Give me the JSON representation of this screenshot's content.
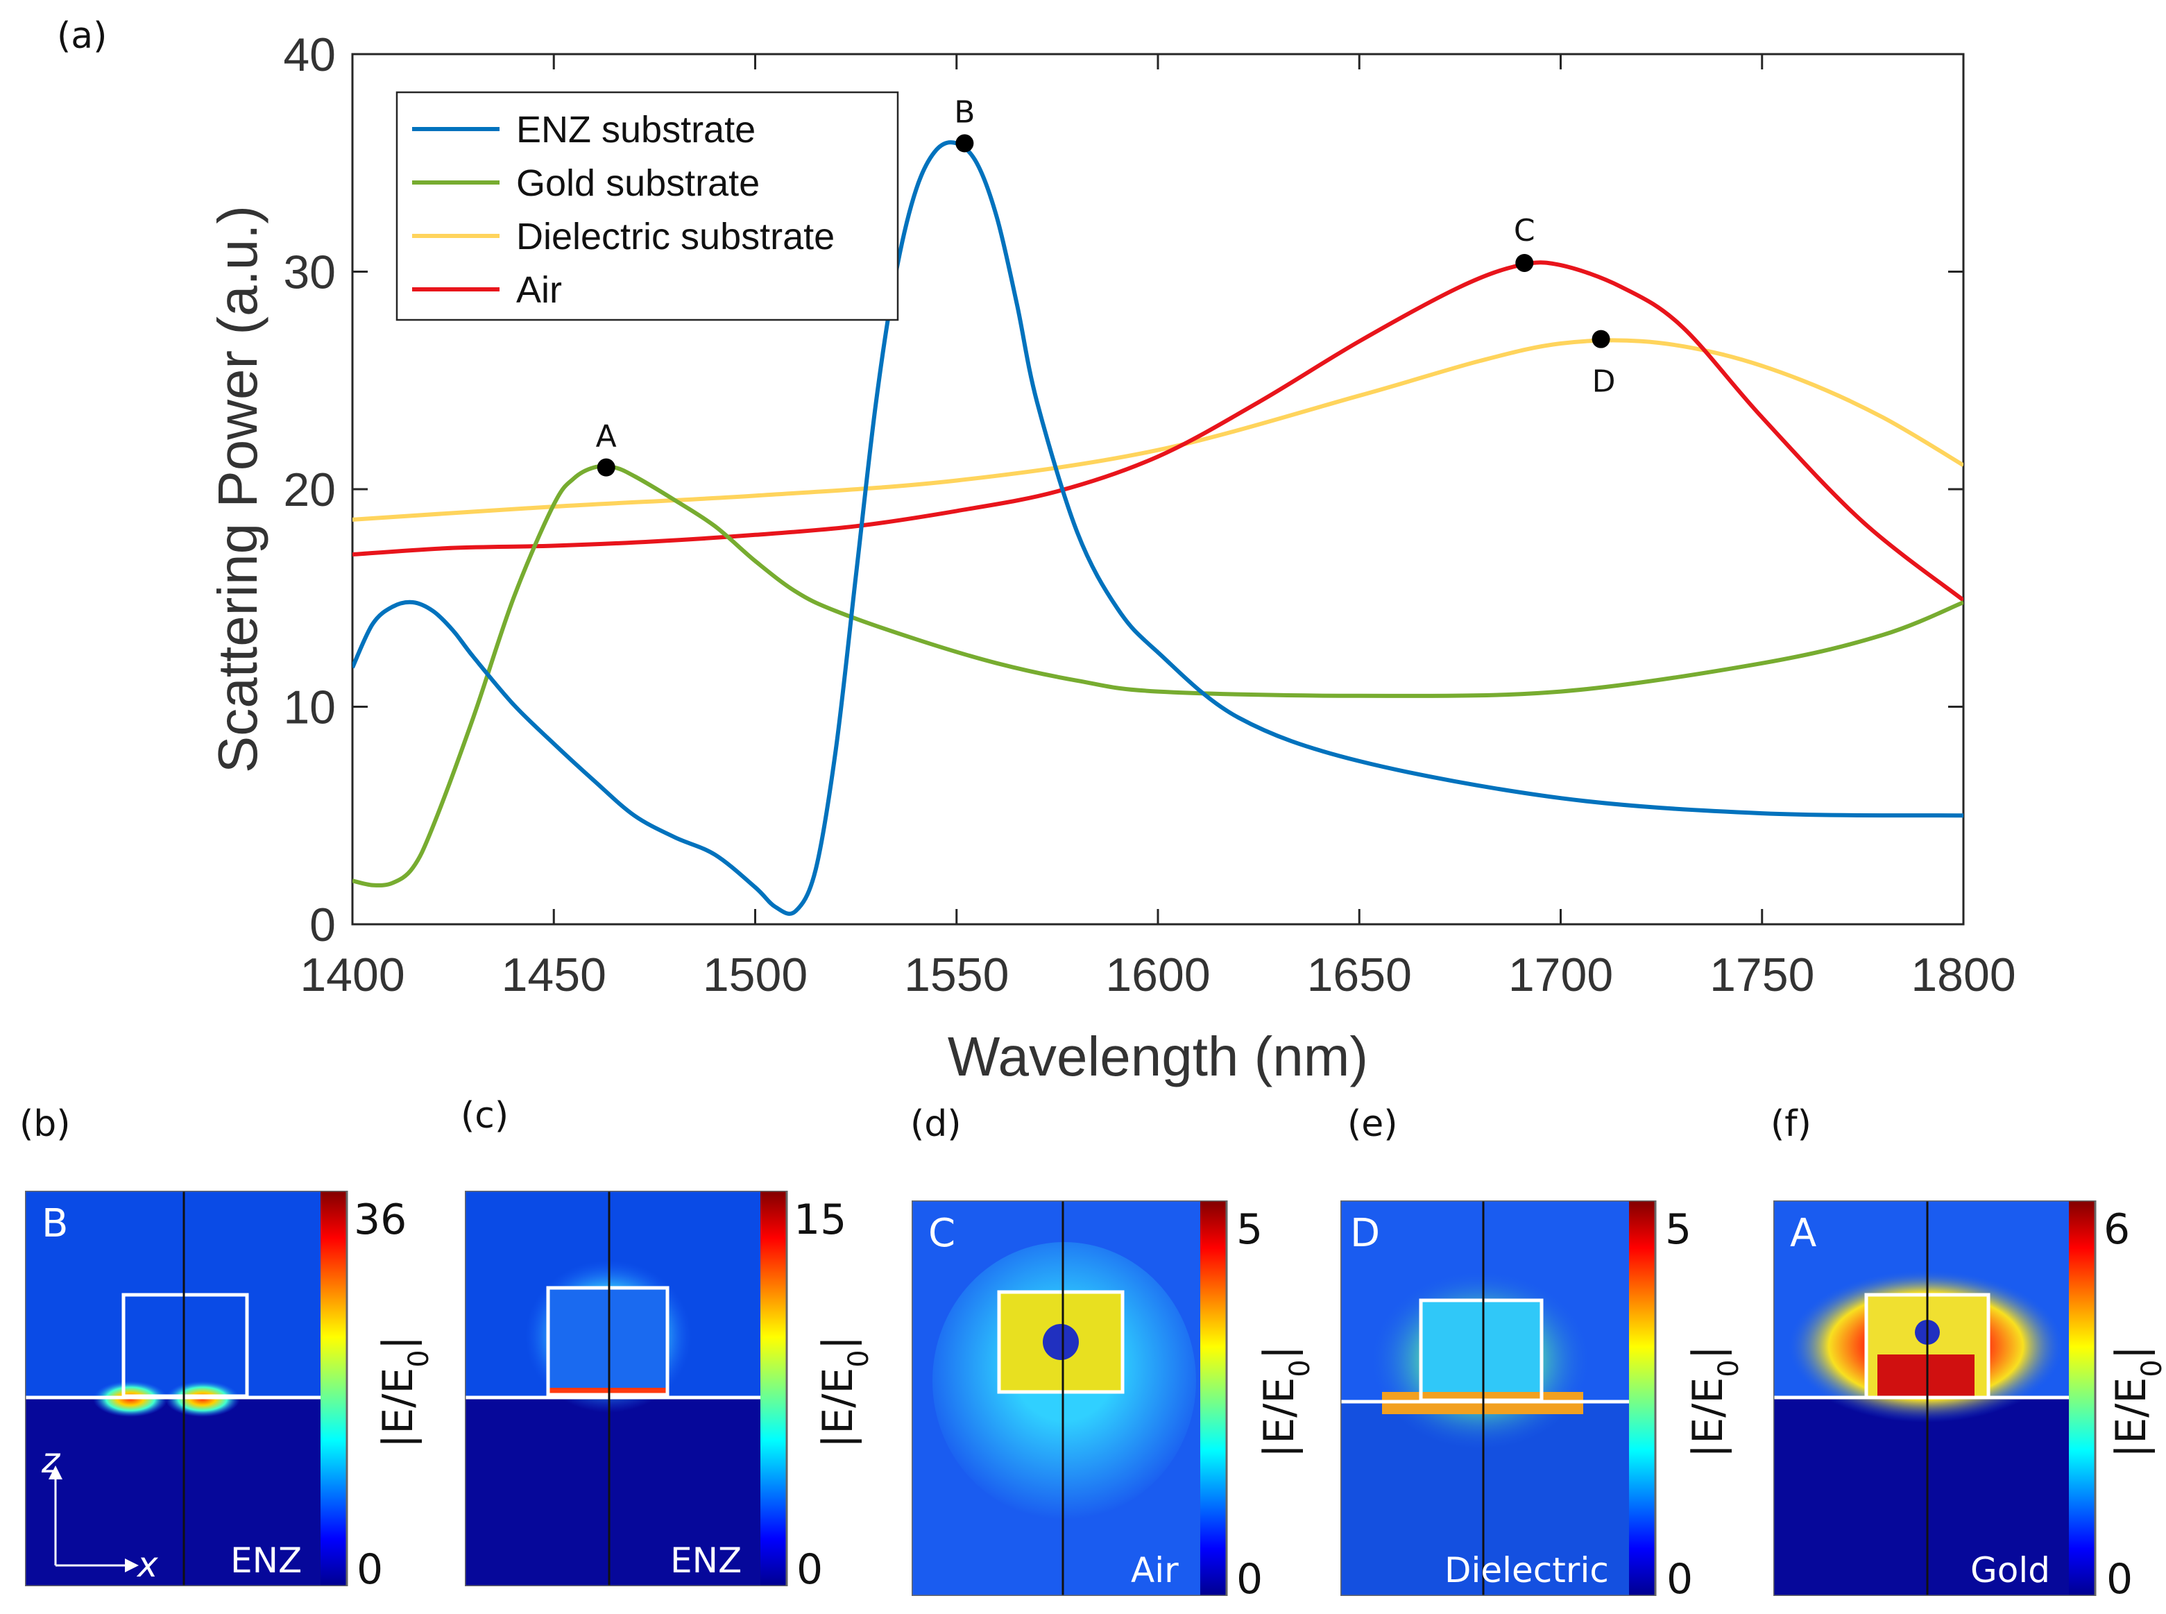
{
  "chart_data": {
    "type": "line",
    "panel_label": "(a)",
    "xlabel": "Wavelength (nm)",
    "ylabel": "Scattering Power (a.u.)",
    "xlim": [
      1400,
      1800
    ],
    "ylim": [
      0,
      40
    ],
    "xticks": [
      1400,
      1450,
      1500,
      1550,
      1600,
      1650,
      1700,
      1750,
      1800
    ],
    "yticks": [
      0,
      10,
      20,
      30,
      40
    ],
    "legend_position": "top-left",
    "series": [
      {
        "name": "ENZ substrate",
        "color": "#0072BD",
        "x": [
          1400,
          1405,
          1410,
          1415,
          1420,
          1425,
          1430,
          1440,
          1450,
          1460,
          1470,
          1480,
          1490,
          1500,
          1505,
          1510,
          1515,
          1520,
          1525,
          1530,
          1535,
          1540,
          1545,
          1550,
          1555,
          1560,
          1565,
          1570,
          1580,
          1590,
          1600,
          1620,
          1650,
          1700,
          1750,
          1800
        ],
        "y": [
          11.8,
          13.8,
          14.6,
          14.8,
          14.4,
          13.5,
          12.3,
          10.1,
          8.3,
          6.6,
          5.0,
          4.0,
          3.2,
          1.7,
          0.8,
          0.6,
          2.5,
          8.0,
          16.0,
          24.0,
          30.0,
          33.8,
          35.6,
          35.9,
          35.0,
          32.5,
          28.5,
          24.0,
          18.0,
          14.5,
          12.5,
          9.5,
          7.5,
          5.8,
          5.1,
          5.0
        ]
      },
      {
        "name": "Gold substrate",
        "color": "#77AC30",
        "x": [
          1400,
          1405,
          1410,
          1415,
          1420,
          1430,
          1440,
          1450,
          1455,
          1460,
          1465,
          1470,
          1480,
          1490,
          1500,
          1510,
          1520,
          1540,
          1560,
          1580,
          1600,
          1650,
          1700,
          1750,
          1780,
          1800
        ],
        "y": [
          2.0,
          1.8,
          1.9,
          2.6,
          4.5,
          9.5,
          15.0,
          19.3,
          20.5,
          21.0,
          21.0,
          20.6,
          19.5,
          18.3,
          16.7,
          15.3,
          14.4,
          13.1,
          12.0,
          11.2,
          10.7,
          10.5,
          10.7,
          12.0,
          13.3,
          14.8
        ]
      },
      {
        "name": "Dielectric substrate",
        "color": "#FFD45C",
        "x": [
          1400,
          1450,
          1500,
          1550,
          1600,
          1650,
          1680,
          1700,
          1720,
          1740,
          1760,
          1780,
          1800
        ],
        "y": [
          18.6,
          19.2,
          19.7,
          20.4,
          21.8,
          24.3,
          25.9,
          26.7,
          26.8,
          26.2,
          25.0,
          23.3,
          21.1
        ]
      },
      {
        "name": "Air",
        "color": "#E8141B",
        "x": [
          1400,
          1425,
          1450,
          1475,
          1500,
          1525,
          1550,
          1575,
          1600,
          1625,
          1650,
          1675,
          1690,
          1700,
          1715,
          1730,
          1750,
          1775,
          1800
        ],
        "y": [
          17.0,
          17.3,
          17.4,
          17.6,
          17.9,
          18.3,
          19.0,
          19.9,
          21.5,
          24.0,
          26.8,
          29.3,
          30.3,
          30.3,
          29.3,
          27.5,
          23.3,
          18.5,
          14.9
        ]
      }
    ],
    "annotations": [
      {
        "label": "A",
        "x": 1463,
        "y": 21.0
      },
      {
        "label": "B",
        "x": 1552,
        "y": 35.9
      },
      {
        "label": "C",
        "x": 1691,
        "y": 30.4
      },
      {
        "label": "D",
        "x": 1710,
        "y": 26.9
      }
    ]
  },
  "field_maps": [
    {
      "panel_label": "(b)",
      "letter": "B",
      "substrate": "ENZ",
      "colorbar_max": "36",
      "colorbar_min": "0",
      "colorbar_label": "|E/E0|",
      "axis_z": "z",
      "axis_x": "x"
    },
    {
      "panel_label": "(c)",
      "letter": "",
      "substrate": "ENZ",
      "colorbar_max": "15",
      "colorbar_min": "0",
      "colorbar_label": "|E/E0|"
    },
    {
      "panel_label": "(d)",
      "letter": "C",
      "substrate": "Air",
      "colorbar_max": "5",
      "colorbar_min": "0",
      "colorbar_label": "|E/E0|"
    },
    {
      "panel_label": "(e)",
      "letter": "D",
      "substrate": "Dielectric",
      "colorbar_max": "5",
      "colorbar_min": "0",
      "colorbar_label": "|E/E0|"
    },
    {
      "panel_label": "(f)",
      "letter": "A",
      "substrate": "Gold",
      "colorbar_max": "6",
      "colorbar_min": "0",
      "colorbar_label": "|E/E0|"
    }
  ]
}
